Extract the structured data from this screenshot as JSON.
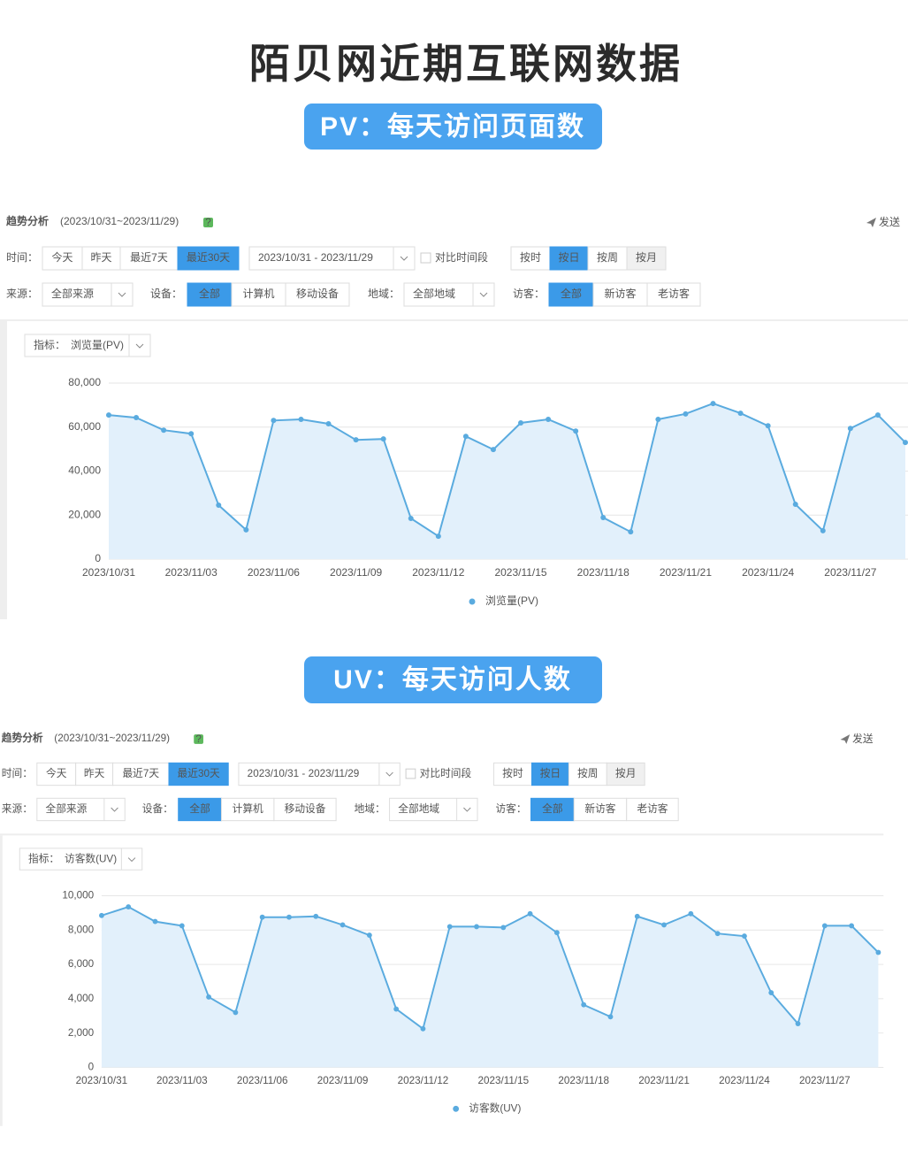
{
  "header": {
    "title": "陌贝网近期互联网数据"
  },
  "banners": [
    "PV：每天访问页面数",
    "UV：每天访问人数"
  ],
  "panels": [
    {
      "title": "趋势分析",
      "date_range": "(2023/10/31~2023/11/29)",
      "help": "?",
      "send": "发送",
      "time_label": "时间：",
      "time_buttons": [
        "今天",
        "昨天",
        "最近7天",
        "最近30天"
      ],
      "date_picker": "2023/10/31 - 2023/11/29",
      "compare": "对比时间段",
      "granularity": [
        "按时",
        "按日",
        "按周",
        "按月"
      ],
      "source_label": "来源：",
      "source": "全部来源",
      "device_label": "设备：",
      "devices": [
        "全部",
        "计算机",
        "移动设备"
      ],
      "region_label": "地域：",
      "region": "全部地域",
      "visitor_label": "访客：",
      "visitors": [
        "全部",
        "新访客",
        "老访客"
      ],
      "metric_label": "指标："
    },
    {
      "title": "趋势分析",
      "date_range": "(2023/10/31~2023/11/29)",
      "help": "?",
      "send": "发送",
      "time_label": "时间：",
      "time_buttons": [
        "今天",
        "昨天",
        "最近7天",
        "最近30天"
      ],
      "date_picker": "2023/10/31 - 2023/11/29",
      "compare": "对比时间段",
      "granularity": [
        "按时",
        "按日",
        "按周",
        "按月"
      ],
      "source_label": "来源：",
      "source": "全部来源",
      "device_label": "设备：",
      "devices": [
        "全部",
        "计算机",
        "移动设备"
      ],
      "region_label": "地域：",
      "region": "全部地域",
      "visitor_label": "访客：",
      "visitors": [
        "全部",
        "新访客",
        "老访客"
      ],
      "metric_label": "指标："
    }
  ],
  "chart_data": [
    {
      "type": "line",
      "categories": [
        "2023/10/31",
        null,
        null,
        "2023/11/03",
        null,
        null,
        "2023/11/06",
        null,
        null,
        "2023/11/09",
        null,
        null,
        "2023/11/12",
        null,
        null,
        "2023/11/15",
        null,
        null,
        "2023/11/18",
        null,
        null,
        "2023/11/21",
        null,
        null,
        "2023/11/24",
        null,
        null,
        "2023/11/27",
        null,
        null
      ],
      "series": [
        {
          "name": "浏览量(PV)",
          "color": "#5aabdf",
          "values": [
            65500,
            64300,
            58600,
            57000,
            24500,
            13300,
            63000,
            63500,
            61500,
            54200,
            54600,
            18500,
            10400,
            55800,
            49800,
            61900,
            63500,
            58200,
            18900,
            12400,
            63500,
            66000,
            70700,
            66300,
            60600,
            24900,
            12900,
            59400,
            65500,
            53000
          ]
        }
      ],
      "ylim": [
        0,
        80000
      ],
      "yticks": [
        0,
        {
          "value": 20000,
          "label": "20,000"
        },
        {
          "value": 40000,
          "label": "40,000"
        },
        {
          "value": 60000,
          "label": "60,000"
        },
        {
          "value": 80000,
          "label": "80,000"
        }
      ],
      "grid": true
    },
    {
      "type": "line",
      "categories": [
        "2023/10/31",
        null,
        null,
        "2023/11/03",
        null,
        null,
        "2023/11/06",
        null,
        null,
        "2023/11/09",
        null,
        null,
        "2023/11/12",
        null,
        null,
        "2023/11/15",
        null,
        null,
        "2023/11/18",
        null,
        null,
        "2023/11/21",
        null,
        null,
        "2023/11/24",
        null,
        null,
        "2023/11/27",
        null,
        null
      ],
      "series": [
        {
          "name": "访客数(UV)",
          "color": "#5aabdf",
          "values": [
            8850,
            9350,
            8500,
            8250,
            4100,
            3200,
            8750,
            8750,
            8800,
            8300,
            7700,
            3400,
            2250,
            8200,
            8200,
            8150,
            8950,
            7850,
            3650,
            2950,
            8800,
            8300,
            8950,
            7800,
            7650,
            4350,
            2550,
            8250,
            8250,
            6700
          ]
        }
      ],
      "ylim": [
        0,
        10000
      ],
      "yticks": [
        0,
        {
          "value": 2000,
          "label": "2,000"
        },
        {
          "value": 4000,
          "label": "4,000"
        },
        {
          "value": 6000,
          "label": "6,000"
        },
        {
          "value": 8000,
          "label": "8,000"
        },
        {
          "value": 10000,
          "label": "10,000"
        }
      ],
      "grid": true
    }
  ]
}
